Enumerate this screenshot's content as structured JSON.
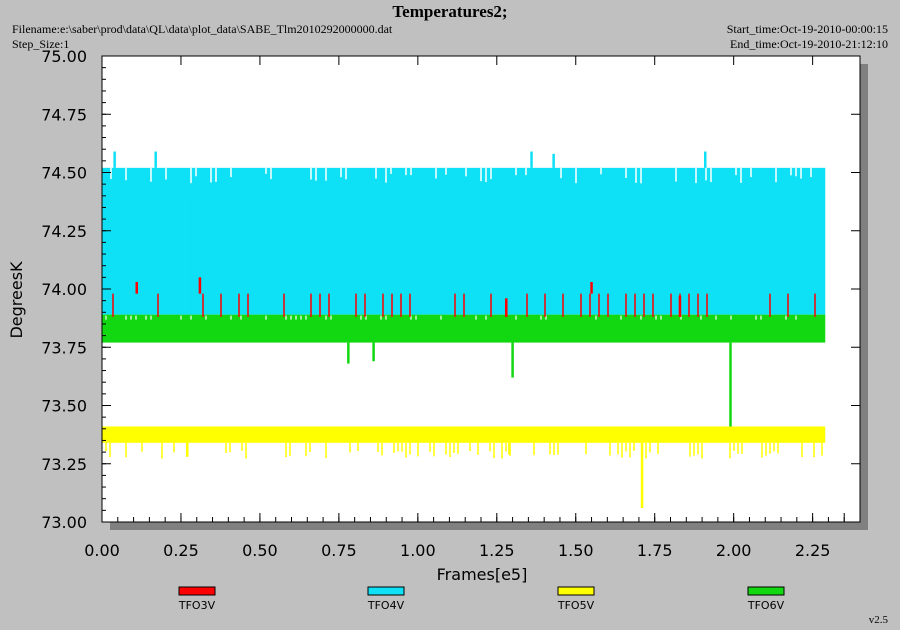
{
  "header": {
    "title": "Temperatures2;",
    "filename": "Filename:e:\\saber\\prod\\data\\QL\\data\\plot_data\\SABE_Tlm2010292000000.dat",
    "step_size": "Step_Size:1",
    "start_time": "Start_time:Oct-19-2010-00:00:15",
    "end_time": "End_time:Oct-19-2010-21:12:10",
    "version": "v2.5"
  },
  "chart_data": {
    "type": "line",
    "xlabel": "Frames[e5]",
    "ylabel": "DegreesK",
    "xlim": [
      0,
      2.4
    ],
    "ylim": [
      73.0,
      75.0
    ],
    "xticks": [
      "0.00",
      "0.25",
      "0.50",
      "0.75",
      "1.00",
      "1.25",
      "1.50",
      "1.75",
      "2.00",
      "2.25"
    ],
    "yticks": [
      "73.00",
      "73.25",
      "73.50",
      "73.75",
      "74.00",
      "74.25",
      "74.50",
      "74.75",
      "75.00"
    ],
    "x_end": 2.29,
    "grid": false,
    "legend_position": "bottom",
    "series": [
      {
        "name": "TFO3V",
        "color": "#ff0000",
        "band": [
          73.88,
          73.98
        ],
        "spikes": [
          {
            "x": 0.11,
            "y": 74.03
          },
          {
            "x": 0.31,
            "y": 74.05
          },
          {
            "x": 1.28,
            "y": 73.96
          },
          {
            "x": 1.55,
            "y": 74.03
          },
          {
            "x": 1.83,
            "y": 73.97
          }
        ]
      },
      {
        "name": "TFO4V",
        "color": "#0ee0f5",
        "band": [
          73.89,
          74.52
        ],
        "spikes": [
          {
            "x": 0.04,
            "y": 74.59
          },
          {
            "x": 0.17,
            "y": 74.59
          },
          {
            "x": 1.36,
            "y": 74.59
          },
          {
            "x": 1.43,
            "y": 74.58
          },
          {
            "x": 1.91,
            "y": 74.59
          },
          {
            "x": 0.28,
            "y": 74.39
          }
        ]
      },
      {
        "name": "TFO5V",
        "color": "#ffff00",
        "band": [
          73.34,
          73.41
        ],
        "spikes": [
          {
            "x": 1.71,
            "y": 73.06
          },
          {
            "x": 0.27,
            "y": 73.28
          },
          {
            "x": 1.29,
            "y": 73.29
          }
        ]
      },
      {
        "name": "TFO6V",
        "color": "#12d812",
        "band": [
          73.77,
          73.89
        ],
        "spikes": [
          {
            "x": 1.3,
            "y": 73.62
          },
          {
            "x": 1.99,
            "y": 73.41
          },
          {
            "x": 0.78,
            "y": 73.68
          },
          {
            "x": 0.86,
            "y": 73.69
          }
        ]
      }
    ]
  }
}
